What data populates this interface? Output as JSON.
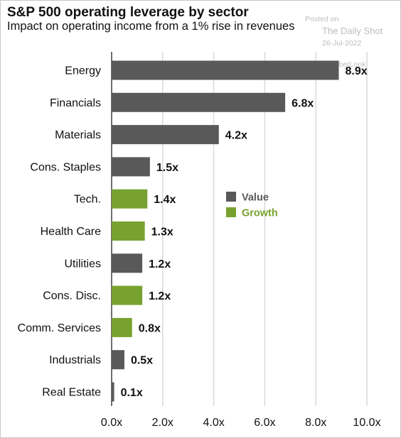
{
  "chart_data": {
    "type": "bar",
    "orientation": "horizontal",
    "title": "S&P 500 operating leverage by sector",
    "subtitle": "Impact on operating income from a 1% rise in revenues",
    "categories": [
      "Energy",
      "Financials",
      "Materials",
      "Cons. Staples",
      "Tech.",
      "Health Care",
      "Utilities",
      "Cons. Disc.",
      "Comm. Services",
      "Industrials",
      "Real Estate"
    ],
    "values": [
      8.9,
      6.8,
      4.2,
      1.5,
      1.4,
      1.3,
      1.2,
      1.2,
      0.8,
      0.5,
      0.1
    ],
    "value_labels": [
      "8.9x",
      "6.8x",
      "4.2x",
      "1.5x",
      "1.4x",
      "1.3x",
      "1.2x",
      "1.2x",
      "0.8x",
      "0.5x",
      "0.1x"
    ],
    "groups": [
      "Value",
      "Value",
      "Value",
      "Value",
      "Growth",
      "Growth",
      "Value",
      "Growth",
      "Growth",
      "Value",
      "Value"
    ],
    "legend": [
      {
        "name": "Value",
        "color": "#595959"
      },
      {
        "name": "Growth",
        "color": "#77a22f"
      }
    ],
    "legend_placement": "center-right",
    "xlim": [
      0,
      10
    ],
    "x_ticks": [
      0,
      2,
      4,
      6,
      8,
      10
    ],
    "x_tick_labels": [
      "0.0x",
      "2.0x",
      "4.0x",
      "6.0x",
      "8.0x",
      "10.0x"
    ],
    "grid": "vertical",
    "colors": {
      "value": "#595959",
      "growth": "#77a22f",
      "grid": "#d9d9d9",
      "axis": "#222222"
    }
  },
  "watermark": {
    "posted": "Posted on",
    "name": "The Daily Shot",
    "date": "26-Jul-2022",
    "handle": "@SoberLook"
  }
}
